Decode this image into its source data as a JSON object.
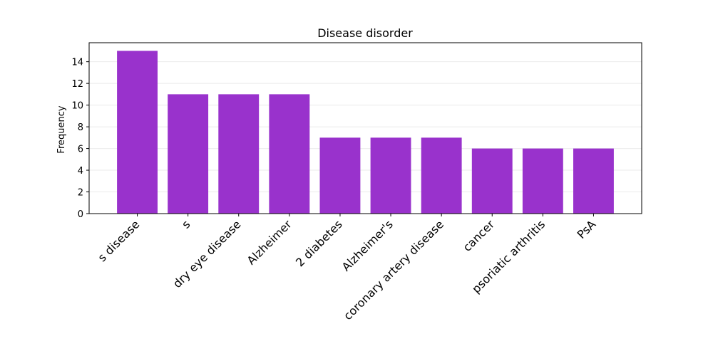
{
  "chart_data": {
    "type": "bar",
    "title": "Disease disorder",
    "xlabel": "",
    "ylabel": "Frequency",
    "categories": [
      "s disease",
      "s",
      "dry eye disease",
      "Alzheimer",
      "2 diabetes",
      "Alzheimer's",
      "coronary artery disease",
      "cancer",
      "psoriatic arthritis",
      "PsA"
    ],
    "values": [
      15,
      11,
      11,
      11,
      7,
      7,
      7,
      6,
      6,
      6
    ],
    "ylim": [
      0,
      15.75
    ],
    "yticks": [
      0,
      2,
      4,
      6,
      8,
      10,
      12,
      14
    ],
    "grid": "y",
    "bar_color": "#9932cc",
    "legend": "none"
  }
}
